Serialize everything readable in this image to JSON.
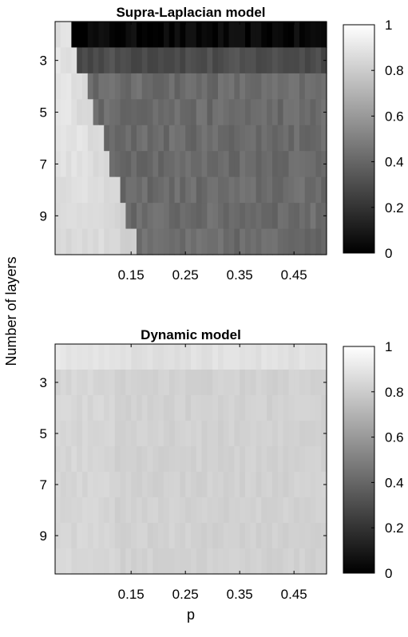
{
  "figure": {
    "ylabel": "Number of layers",
    "xlabel": "p"
  },
  "chart_data": [
    {
      "type": "heatmap",
      "title": "Supra-Laplacian model",
      "x_range": [
        0.01,
        0.51
      ],
      "x_ticks": [
        0.15,
        0.25,
        0.35,
        0.45
      ],
      "x_tick_labels": [
        "0.15",
        "0.25",
        "0.35",
        "0.45"
      ],
      "y_range": [
        2,
        10
      ],
      "y_ticks": [
        3,
        5,
        7,
        9
      ],
      "y_tick_labels": [
        "3",
        "5",
        "7",
        "9"
      ],
      "rows": [
        2,
        3,
        4,
        5,
        6,
        7,
        8,
        9,
        10
      ],
      "colorbar": {
        "range": [
          0,
          1
        ],
        "ticks": [
          0,
          0.2,
          0.4,
          0.6,
          0.8,
          1
        ],
        "tick_labels": [
          "0",
          "0.2",
          "0.4",
          "0.6",
          "0.8",
          "1"
        ],
        "colormap": "gray"
      },
      "pattern": "high (~0.85-0.95) for p below a threshold that grows with layers (~0.04 at 2 layers to ~0.16 at 10 layers); near 0 for 2 layers above threshold; ~0.3 for 3 layers; ~0.4-0.45 for 4-10 layers"
    },
    {
      "type": "heatmap",
      "title": "Dynamic model",
      "x_range": [
        0.01,
        0.51
      ],
      "x_ticks": [
        0.15,
        0.25,
        0.35,
        0.45
      ],
      "x_tick_labels": [
        "0.15",
        "0.25",
        "0.35",
        "0.45"
      ],
      "y_range": [
        2,
        10
      ],
      "y_ticks": [
        3,
        5,
        7,
        9
      ],
      "y_tick_labels": [
        "3",
        "5",
        "7",
        "9"
      ],
      "rows": [
        2,
        3,
        4,
        5,
        6,
        7,
        8,
        9,
        10
      ],
      "colorbar": {
        "range": [
          0,
          1
        ],
        "ticks": [
          0,
          0.2,
          0.4,
          0.6,
          0.8,
          1
        ],
        "tick_labels": [
          "0",
          "0.2",
          "0.4",
          "0.6",
          "0.8",
          "1"
        ],
        "colormap": "gray"
      },
      "pattern": "uniformly light gray; ~0.88 at 2 layers, ~0.80-0.85 elsewhere, slightly lighter at small p"
    }
  ]
}
